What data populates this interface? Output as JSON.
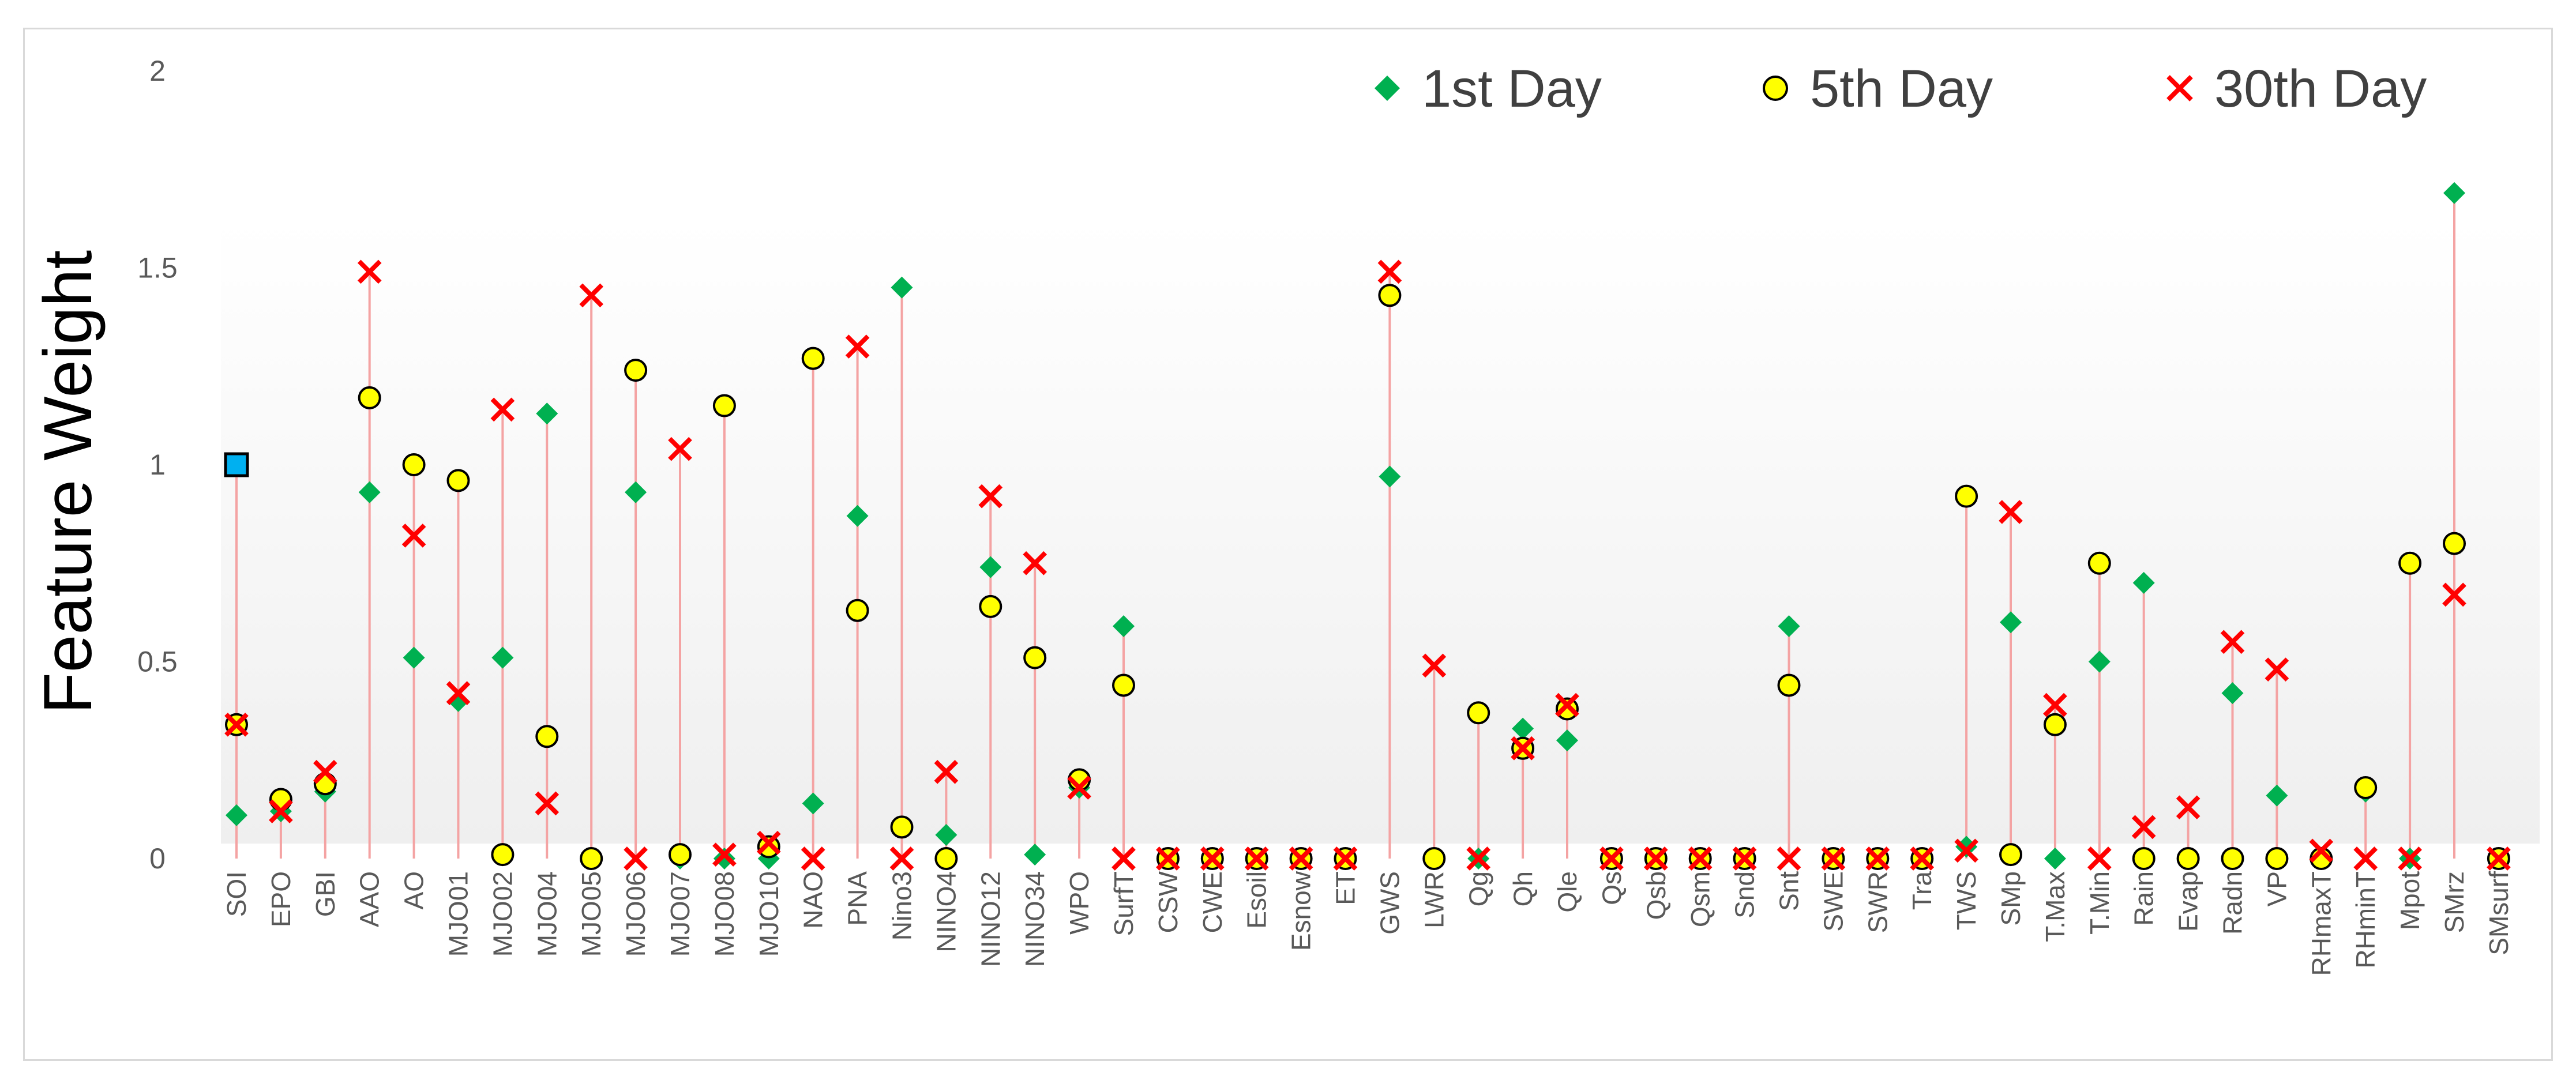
{
  "chart_data": {
    "type": "scatter",
    "title": "",
    "xlabel": "",
    "ylabel": "Feature Weight",
    "ylim": [
      0,
      2
    ],
    "yticks": [
      {
        "value": 0,
        "label": "0"
      },
      {
        "value": 0.5,
        "label": "0.5"
      },
      {
        "value": 1,
        "label": "1"
      },
      {
        "value": 1.5,
        "label": "1.5"
      },
      {
        "value": 2,
        "label": "2"
      }
    ],
    "grid": false,
    "legend_position": "top-right",
    "categories": [
      "SOI",
      "EPO",
      "GBI",
      "AAO",
      "AO",
      "MJO01",
      "MJO02",
      "MJO04",
      "MJO05",
      "MJO06",
      "MJO07",
      "MJO08",
      "MJO10",
      "NAO",
      "PNA",
      "Nino3",
      "NINO4",
      "NINO12",
      "NINO34",
      "WPO",
      "SurfT",
      "CSW",
      "CWE",
      "Esoil",
      "Esnow",
      "ET",
      "GWS",
      "LWR",
      "Qg",
      "Qh",
      "Qle",
      "Qs",
      "Qsb",
      "Qsm",
      "Snd",
      "Snt",
      "SWE",
      "SWR",
      "Tra",
      "TWS",
      "SMp",
      "T.Max",
      "T.Min",
      "Rain",
      "Evap",
      "Radn",
      "VP",
      "RHmaxT",
      "RHminT",
      "Mpot",
      "SMrz",
      "SMsurf"
    ],
    "series": [
      {
        "name": "1st Day",
        "marker": "diamond",
        "color": "#00b050",
        "values": [
          0.11,
          0.12,
          0.17,
          0.93,
          0.51,
          0.4,
          0.51,
          1.13,
          0,
          0.93,
          0,
          0,
          0,
          0.14,
          0.87,
          1.45,
          0.06,
          0.74,
          0.01,
          0.18,
          0.59,
          0,
          0,
          0,
          0,
          0,
          0.97,
          0,
          0,
          0.33,
          0.3,
          0,
          0,
          0,
          0,
          0.59,
          0,
          0,
          0,
          0.03,
          0.6,
          0,
          0.5,
          0.7,
          0,
          0.42,
          0.16,
          0,
          0.17,
          0,
          1.69,
          0
        ]
      },
      {
        "name": "5th Day",
        "marker": "circle",
        "color": "#ffff00",
        "values": [
          0.34,
          0.15,
          0.19,
          1.17,
          1.0,
          0.96,
          0.01,
          0.31,
          0,
          1.24,
          0.01,
          1.15,
          0.03,
          1.27,
          0.63,
          0.08,
          0,
          0.64,
          0.51,
          0.2,
          0.44,
          0,
          0,
          0,
          0,
          0,
          1.43,
          0,
          0.37,
          0.28,
          0.38,
          0,
          0,
          0,
          0,
          0.44,
          0,
          0,
          0,
          0.92,
          0.01,
          0.34,
          0.75,
          0,
          0,
          0,
          0,
          0,
          0.18,
          0.75,
          0.8,
          0
        ]
      },
      {
        "name": "30th Day",
        "marker": "x",
        "color": "#ff0000",
        "values": [
          0.34,
          0.12,
          0.22,
          1.49,
          0.82,
          0.42,
          1.14,
          0.14,
          1.43,
          0,
          1.04,
          0.01,
          0.04,
          0,
          1.3,
          0,
          0.22,
          0.92,
          0.75,
          0.18,
          0,
          0,
          0,
          0,
          0,
          0,
          1.49,
          0.49,
          0,
          0.28,
          0.39,
          0,
          0,
          0,
          0,
          0,
          0,
          0,
          0,
          0.02,
          0.88,
          0.39,
          0,
          0.08,
          0.13,
          0.55,
          0.48,
          0.02,
          0,
          0,
          0.67,
          0
        ]
      }
    ],
    "annotations": [
      {
        "category": "SOI",
        "value": 1,
        "marker": "square",
        "color": "#00b0f0"
      }
    ],
    "drop_line_color": "#f4a3a3"
  }
}
